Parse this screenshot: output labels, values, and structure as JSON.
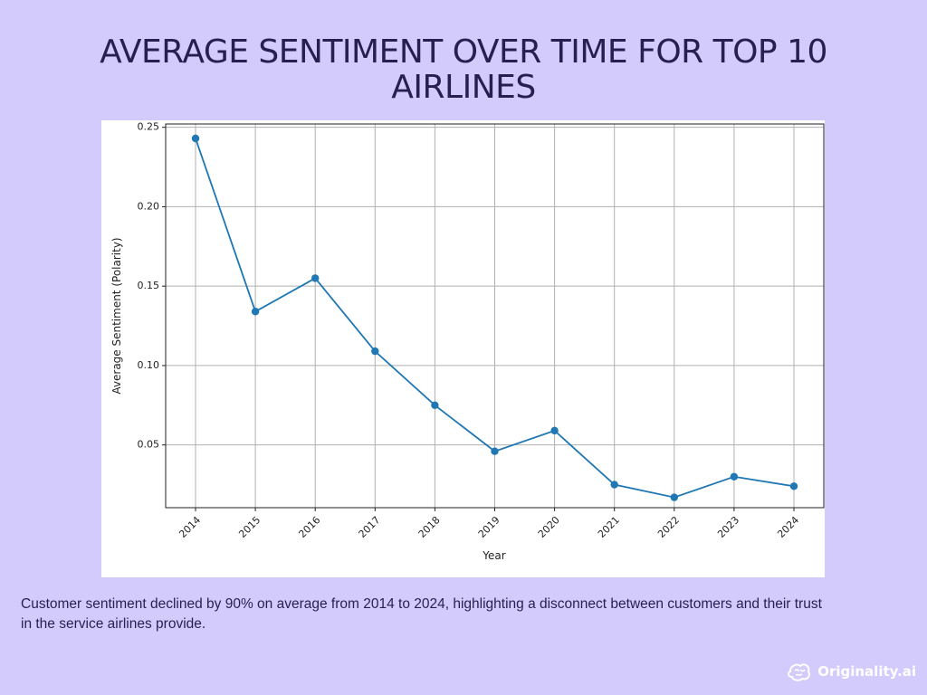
{
  "page": {
    "title": "AVERAGE SENTIMENT OVER TIME FOR TOP 10 AIRLINES",
    "caption": "Customer sentiment  declined by 90% on average from 2014 to 2024, highlighting a disconnect between customers and their trust in the service airlines provide.",
    "brand": "Originality.ai"
  },
  "colors": {
    "background": "#d4cbfd",
    "title": "#261f4f",
    "line": "#1f77b4",
    "grid": "#b0b0b0",
    "brand": "#ffffff"
  },
  "chart_data": {
    "type": "line",
    "title": "",
    "xlabel": "Year",
    "ylabel": "Average Sentiment (Polarity)",
    "x": [
      "2014",
      "2015",
      "2016",
      "2017",
      "2018",
      "2019",
      "2020",
      "2021",
      "2022",
      "2023",
      "2024"
    ],
    "series": [
      {
        "values": [
          0.243,
          0.134,
          0.155,
          0.109,
          0.075,
          0.046,
          0.059,
          0.025,
          0.017,
          0.03,
          0.024
        ]
      }
    ],
    "yticks": [
      "0.05",
      "0.10",
      "0.15",
      "0.20",
      "0.25"
    ],
    "ylim": [
      0.0105,
      0.2521
    ],
    "grid": true,
    "markers": "circle"
  }
}
